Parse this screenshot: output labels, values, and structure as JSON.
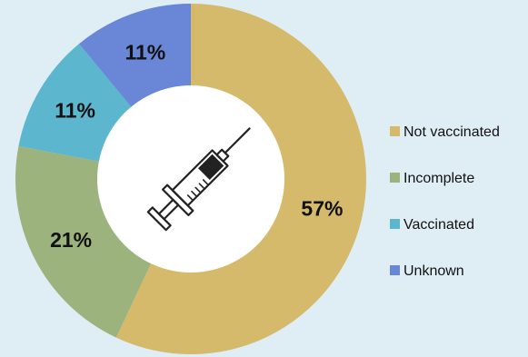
{
  "chart_data": {
    "type": "pie",
    "donut": true,
    "title": "",
    "legend_position": "right",
    "slices": [
      {
        "name": "Not vaccinated",
        "value": 57,
        "label": "57%",
        "color": "#d4ba6a"
      },
      {
        "name": "Incomplete",
        "value": 21,
        "label": "21%",
        "color": "#9db37d"
      },
      {
        "name": "Vaccinated",
        "value": 11,
        "label": "11%",
        "color": "#5cb6cd"
      },
      {
        "name": "Unknown",
        "value": 11,
        "label": "11%",
        "color": "#6a86d6"
      }
    ],
    "center_icon": "syringe-icon"
  },
  "colors": {
    "background": "#dfeef5",
    "hole": "#ffffff",
    "icon_stroke": "#222222"
  }
}
